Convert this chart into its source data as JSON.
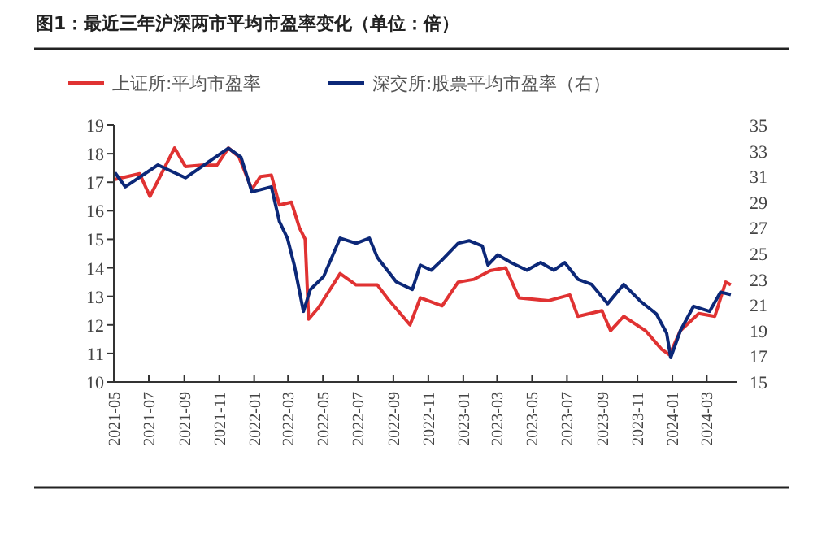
{
  "chart_data": {
    "type": "line",
    "title": "图1：最近三年沪深两市平均市盈率变化（单位：倍）",
    "xlim": [
      "2021-05-01",
      "2024-04-22"
    ],
    "xticks": [
      "2021-05",
      "2021-07",
      "2021-09",
      "2021-11",
      "2022-01",
      "2022-03",
      "2022-05",
      "2022-07",
      "2022-09",
      "2022-11",
      "2023-01",
      "2023-03",
      "2023-05",
      "2023-07",
      "2023-09",
      "2023-11",
      "2024-01",
      "2024-03"
    ],
    "ylim": [
      10,
      19
    ],
    "yticks": [
      10,
      11,
      12,
      13,
      14,
      15,
      16,
      17,
      18,
      19
    ],
    "y2lim": [
      15,
      35
    ],
    "y2ticks": [
      15,
      17,
      19,
      21,
      23,
      25,
      27,
      29,
      31,
      33,
      35
    ],
    "legend": "top",
    "grid": false,
    "line_style": "solid",
    "marker": "none",
    "series": [
      {
        "name": "上证所:平均市盈率",
        "color": "#e03232",
        "x": [
          "2021-05-03",
          "2021-06-15",
          "2021-07-03",
          "2021-08-15",
          "2021-09-03",
          "2021-10-01",
          "2021-10-28",
          "2021-11-17",
          "2021-12-05",
          "2021-12-28",
          "2022-01-12",
          "2022-01-31",
          "2022-02-14",
          "2022-03-07",
          "2022-03-21",
          "2022-03-31",
          "2022-04-06",
          "2022-04-23",
          "2022-05-31",
          "2022-06-28",
          "2022-08-04",
          "2022-08-23",
          "2022-09-30",
          "2022-10-18",
          "2022-11-25",
          "2022-12-23",
          "2023-01-20",
          "2023-02-17",
          "2023-03-16",
          "2023-04-08",
          "2023-05-30",
          "2023-07-06",
          "2023-07-20",
          "2023-08-31",
          "2023-09-15",
          "2023-10-08",
          "2023-11-15",
          "2023-12-13",
          "2023-12-27",
          "2024-01-15",
          "2024-02-16",
          "2024-03-15",
          "2024-04-03",
          "2024-04-12"
        ],
        "values": [
          17.1,
          17.3,
          16.5,
          18.2,
          17.55,
          17.6,
          17.6,
          18.2,
          17.9,
          16.75,
          17.2,
          17.25,
          16.2,
          16.3,
          15.4,
          15.0,
          12.2,
          12.6,
          13.8,
          13.4,
          13.4,
          12.9,
          12.0,
          12.95,
          12.67,
          13.5,
          13.6,
          13.9,
          14.0,
          12.95,
          12.85,
          13.05,
          12.3,
          12.5,
          11.8,
          12.3,
          11.8,
          11.15,
          10.95,
          11.8,
          12.4,
          12.3,
          13.5,
          13.4
        ]
      },
      {
        "name": "深交所:股票平均市盈率（右）",
        "color": "#0c2878",
        "axis": "y2",
        "x": [
          "2021-05-03",
          "2021-05-21",
          "2021-07-17",
          "2021-09-03",
          "2021-11-17",
          "2021-12-09",
          "2021-12-28",
          "2022-01-31",
          "2022-02-14",
          "2022-02-28",
          "2022-03-12",
          "2022-03-28",
          "2022-04-09",
          "2022-05-02",
          "2022-05-31",
          "2022-06-28",
          "2022-07-21",
          "2022-08-04",
          "2022-09-06",
          "2022-10-04",
          "2022-10-18",
          "2022-11-06",
          "2022-11-25",
          "2022-12-23",
          "2023-01-11",
          "2023-02-03",
          "2023-02-13",
          "2023-03-02",
          "2023-03-25",
          "2023-04-22",
          "2023-05-16",
          "2023-06-08",
          "2023-06-27",
          "2023-07-20",
          "2023-08-13",
          "2023-09-10",
          "2023-10-08",
          "2023-11-06",
          "2023-12-04",
          "2023-12-22",
          "2023-12-29",
          "2024-01-15",
          "2024-02-07",
          "2024-03-06",
          "2024-03-25",
          "2024-04-12"
        ],
        "values": [
          31.3,
          30.2,
          31.9,
          30.9,
          33.2,
          32.5,
          29.8,
          30.2,
          27.5,
          26.2,
          24.1,
          20.5,
          22.2,
          23.2,
          26.2,
          25.8,
          26.2,
          24.7,
          22.8,
          22.2,
          24.1,
          23.7,
          24.5,
          25.8,
          26.0,
          25.6,
          24.1,
          24.9,
          24.3,
          23.7,
          24.3,
          23.7,
          24.3,
          23.0,
          22.6,
          21.1,
          22.6,
          21.3,
          20.3,
          18.8,
          16.9,
          19.0,
          20.9,
          20.5,
          22.0,
          21.8
        ]
      }
    ]
  }
}
